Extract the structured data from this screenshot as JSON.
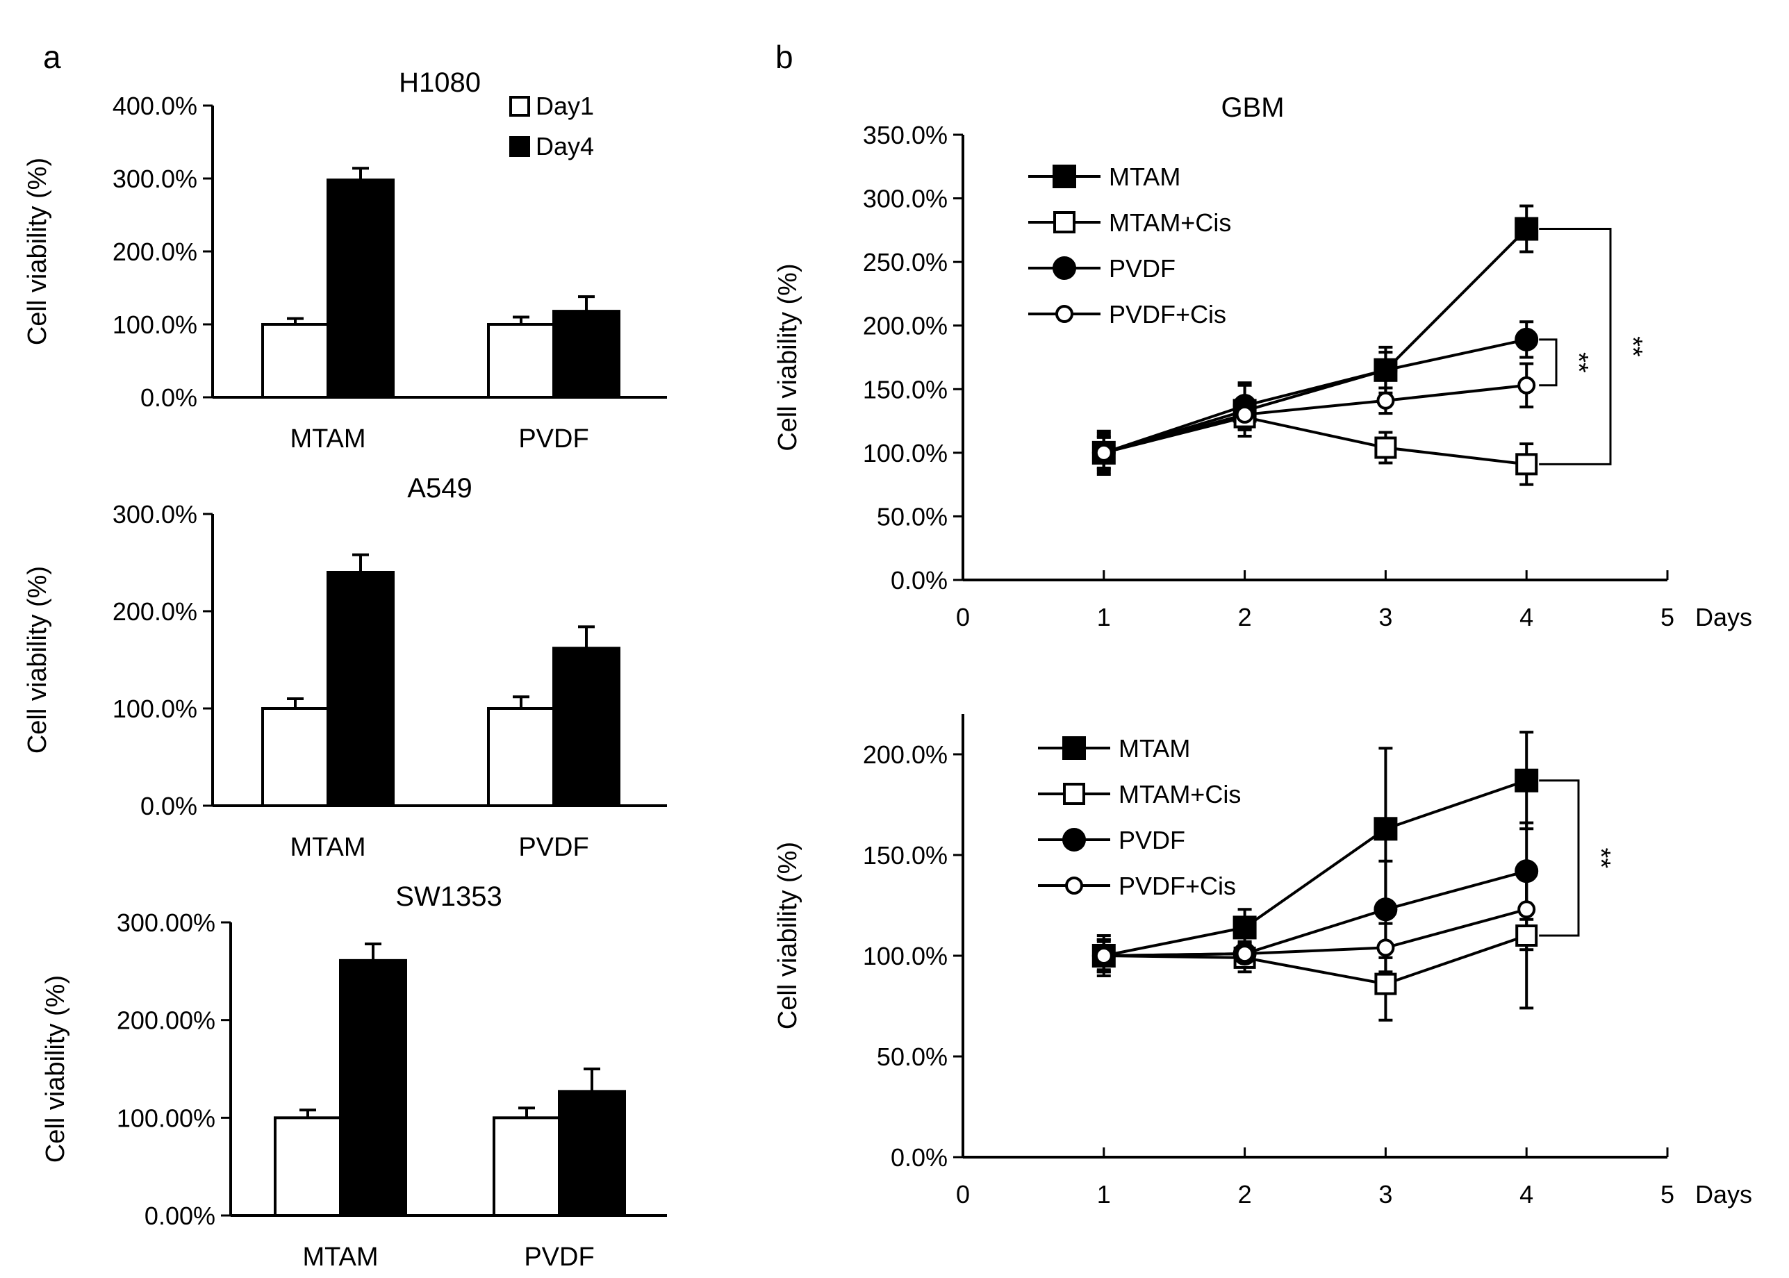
{
  "panel_labels": [
    "a",
    "b"
  ],
  "chart_data": [
    {
      "id": "h1080",
      "type": "bar",
      "title": "H1080",
      "ylabel": "Cell viability (%)",
      "xlabel": "",
      "categories": [
        "MTAM",
        "PVDF"
      ],
      "series": [
        {
          "name": "Day1",
          "fill": "#ffffff",
          "values": [
            100,
            100
          ],
          "errors": [
            8,
            10
          ]
        },
        {
          "name": "Day4",
          "fill": "#000000",
          "values": [
            298,
            118
          ],
          "errors": [
            16,
            20
          ]
        }
      ],
      "ylim": [
        0,
        400
      ],
      "yticks": [
        0,
        100,
        200,
        300,
        400
      ],
      "ytick_labels": [
        "0.0%",
        "100.0%",
        "200.0%",
        "300.0%",
        "400.0%"
      ],
      "legend": {
        "position": "top-right",
        "entries": [
          "Day1",
          "Day4"
        ]
      }
    },
    {
      "id": "a549",
      "type": "bar",
      "title": "A549",
      "ylabel": "Cell viability (%)",
      "xlabel": "",
      "categories": [
        "MTAM",
        "PVDF"
      ],
      "series": [
        {
          "name": "Day1",
          "fill": "#ffffff",
          "values": [
            100,
            100
          ],
          "errors": [
            10,
            12
          ]
        },
        {
          "name": "Day4",
          "fill": "#000000",
          "values": [
            240,
            162
          ],
          "errors": [
            18,
            22
          ]
        }
      ],
      "ylim": [
        0,
        300
      ],
      "yticks": [
        0,
        100,
        200,
        300
      ],
      "ytick_labels": [
        "0.0%",
        "100.0%",
        "200.0%",
        "300.0%"
      ]
    },
    {
      "id": "sw1353",
      "type": "bar",
      "title": "SW1353",
      "ylabel": "Cell viability (%)",
      "xlabel": "",
      "categories": [
        "MTAM",
        "PVDF"
      ],
      "series": [
        {
          "name": "Day1",
          "fill": "#ffffff",
          "values": [
            100,
            100
          ],
          "errors": [
            8,
            10
          ]
        },
        {
          "name": "Day4",
          "fill": "#000000",
          "values": [
            261,
            127
          ],
          "errors": [
            17,
            23
          ]
        }
      ],
      "ylim": [
        0,
        300
      ],
      "yticks": [
        0,
        100,
        200,
        300
      ],
      "ytick_labels": [
        "0.00%",
        "100.00%",
        "200.00%",
        "300.00%"
      ]
    },
    {
      "id": "gbm",
      "type": "line",
      "title": "GBM",
      "ylabel": "Cell viability (%)",
      "xlabel": "Days",
      "x": [
        1,
        2,
        3,
        4
      ],
      "xlim": [
        0,
        5
      ],
      "xticks": [
        0,
        1,
        2,
        3,
        4,
        5
      ],
      "xtick_labels": [
        "0",
        "1",
        "2",
        "3",
        "4",
        "5"
      ],
      "ylim": [
        0,
        350
      ],
      "yticks": [
        0,
        50,
        100,
        150,
        200,
        250,
        300,
        350
      ],
      "ytick_labels": [
        "0.0%",
        "50.0%",
        "100.0%",
        "150.0%",
        "200.0%",
        "250.0%",
        "300.0%",
        "350.0%"
      ],
      "series": [
        {
          "name": "MTAM",
          "marker": "square-filled",
          "values": [
            100,
            133,
            165,
            276
          ],
          "errors": [
            17,
            20,
            18,
            18
          ]
        },
        {
          "name": "MTAM+Cis",
          "marker": "square-open",
          "values": [
            100,
            128,
            104,
            91
          ],
          "errors": [
            15,
            10,
            12,
            16
          ]
        },
        {
          "name": "PVDF",
          "marker": "circle-filled",
          "values": [
            100,
            137,
            165,
            189
          ],
          "errors": [
            13,
            18,
            14,
            14
          ]
        },
        {
          "name": "PVDF+Cis",
          "marker": "circle-open",
          "values": [
            100,
            130,
            141,
            153
          ],
          "errors": [
            12,
            10,
            10,
            17
          ]
        }
      ],
      "legend": {
        "position": "top-left",
        "entries": [
          "MTAM",
          "MTAM+Cis",
          "PVDF",
          "PVDF+Cis"
        ]
      },
      "significance": [
        {
          "label": "**",
          "y1": 189,
          "y2": 153,
          "offset": 1
        },
        {
          "label": "**",
          "y1": 276,
          "y2": 91,
          "offset": 2
        }
      ]
    },
    {
      "id": "panel_b_bottom",
      "type": "line",
      "title": "",
      "ylabel": "Cell viability (%)",
      "xlabel": "Days",
      "x": [
        1,
        2,
        3,
        4
      ],
      "xlim": [
        0,
        5
      ],
      "xticks": [
        0,
        1,
        2,
        3,
        4,
        5
      ],
      "xtick_labels": [
        "0",
        "1",
        "2",
        "3",
        "4",
        "5"
      ],
      "ylim": [
        0,
        220
      ],
      "yticks": [
        0,
        50,
        100,
        150,
        200
      ],
      "ytick_labels": [
        "0.0%",
        "50.0%",
        "100.0%",
        "150.0%",
        "200.0%"
      ],
      "series": [
        {
          "name": "MTAM",
          "marker": "square-filled",
          "values": [
            100,
            114,
            163,
            187
          ],
          "errors": [
            10,
            9,
            40,
            24
          ]
        },
        {
          "name": "MTAM+Cis",
          "marker": "square-open",
          "values": [
            100,
            99,
            86,
            110
          ],
          "errors": [
            8,
            7,
            18,
            36
          ]
        },
        {
          "name": "PVDF",
          "marker": "circle-filled",
          "values": [
            100,
            101,
            123,
            142
          ],
          "errors": [
            8,
            6,
            24,
            24
          ]
        },
        {
          "name": "PVDF+Cis",
          "marker": "circle-open",
          "values": [
            100,
            101,
            104,
            123
          ],
          "errors": [
            7,
            5,
            12,
            20
          ]
        }
      ],
      "legend": {
        "position": "top-left",
        "entries": [
          "MTAM",
          "MTAM+Cis",
          "PVDF",
          "PVDF+Cis"
        ]
      },
      "significance": [
        {
          "label": "**",
          "y1": 187,
          "y2": 110,
          "offset": 1
        }
      ]
    }
  ]
}
